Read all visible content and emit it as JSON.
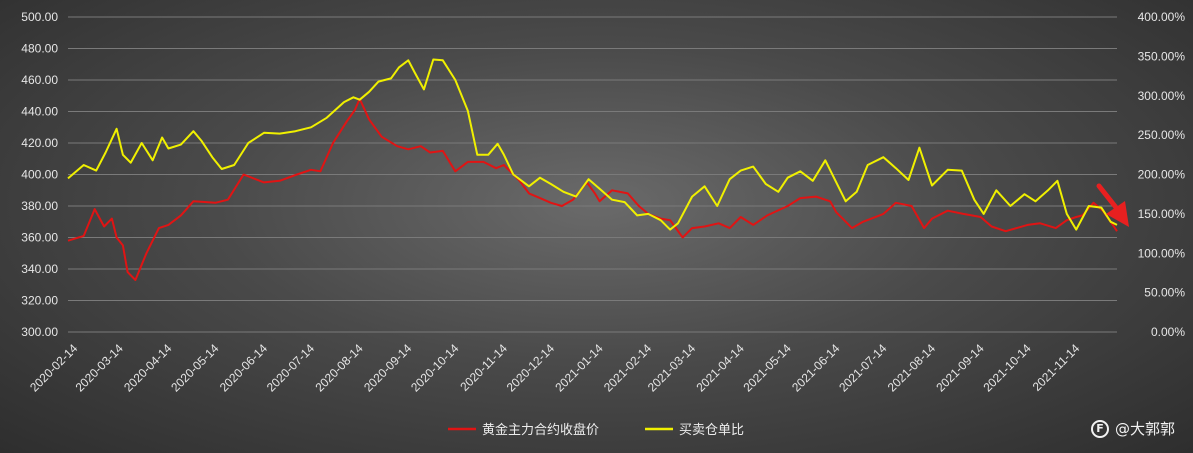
{
  "chart_data": {
    "type": "line",
    "title": "",
    "left_axis": {
      "ylim": [
        300,
        500
      ],
      "ticks": [
        "300.00",
        "320.00",
        "340.00",
        "360.00",
        "380.00",
        "400.00",
        "420.00",
        "440.00",
        "460.00",
        "480.00",
        "500.00"
      ]
    },
    "right_axis": {
      "ylim": [
        0,
        400
      ],
      "ticks": [
        "0.00%",
        "50.00%",
        "100.00%",
        "150.00%",
        "200.00%",
        "250.00%",
        "300.00%",
        "350.00%",
        "400.00%"
      ]
    },
    "x_ticks": [
      "2020-02-14",
      "2020-03-14",
      "2020-04-14",
      "2020-05-14",
      "2020-06-14",
      "2020-07-14",
      "2020-08-14",
      "2020-09-14",
      "2020-10-14",
      "2020-11-14",
      "2020-12-14",
      "2021-01-14",
      "2021-02-14",
      "2021-03-14",
      "2021-04-14",
      "2021-05-14",
      "2021-06-14",
      "2021-07-14",
      "2021-08-14",
      "2021-09-14",
      "2021-10-14",
      "2021-11-14"
    ],
    "x_range": [
      "2020-02-10",
      "2021-12-10"
    ],
    "grid": true,
    "legend_position": "bottom",
    "series": [
      {
        "name": "黄金主力合约收盘价",
        "axis": "left",
        "color": "#e01414",
        "x": [
          "2020-02-10",
          "2020-02-20",
          "2020-02-27",
          "2020-03-04",
          "2020-03-09",
          "2020-03-12",
          "2020-03-16",
          "2020-03-19",
          "2020-03-24",
          "2020-03-31",
          "2020-04-08",
          "2020-04-14",
          "2020-04-22",
          "2020-04-30",
          "2020-05-14",
          "2020-05-22",
          "2020-06-01",
          "2020-06-14",
          "2020-06-24",
          "2020-07-05",
          "2020-07-14",
          "2020-07-20",
          "2020-07-28",
          "2020-08-06",
          "2020-08-11",
          "2020-08-14",
          "2020-08-20",
          "2020-08-28",
          "2020-09-07",
          "2020-09-14",
          "2020-09-22",
          "2020-09-28",
          "2020-10-06",
          "2020-10-14",
          "2020-10-22",
          "2020-11-01",
          "2020-11-09",
          "2020-11-14",
          "2020-11-18",
          "2020-11-24",
          "2020-11-30",
          "2020-12-07",
          "2020-12-14",
          "2020-12-21",
          "2020-12-28",
          "2021-01-06",
          "2021-01-11",
          "2021-01-14",
          "2021-01-22",
          "2021-02-01",
          "2021-02-08",
          "2021-02-14",
          "2021-02-22",
          "2021-02-28",
          "2021-03-08",
          "2021-03-14",
          "2021-03-22",
          "2021-03-31",
          "2021-04-07",
          "2021-04-14",
          "2021-04-22",
          "2021-05-01",
          "2021-05-14",
          "2021-05-22",
          "2021-06-01",
          "2021-06-10",
          "2021-06-14",
          "2021-06-18",
          "2021-06-24",
          "2021-07-01",
          "2021-07-14",
          "2021-07-22",
          "2021-08-01",
          "2021-08-09",
          "2021-08-14",
          "2021-08-24",
          "2021-09-03",
          "2021-09-14",
          "2021-09-21",
          "2021-09-30",
          "2021-10-14",
          "2021-10-22",
          "2021-11-01",
          "2021-11-08",
          "2021-11-14",
          "2021-11-18",
          "2021-11-25",
          "2021-12-01",
          "2021-12-08",
          "2021-12-10"
        ],
        "values": [
          358,
          361,
          378,
          367,
          372,
          360,
          355,
          338,
          333,
          350,
          366,
          368,
          374,
          383,
          382,
          384,
          400,
          395,
          396,
          400,
          403,
          402,
          420,
          434,
          441,
          448,
          435,
          424,
          418,
          416,
          418,
          414,
          415,
          402,
          408,
          408,
          404,
          406,
          402,
          396,
          388,
          385,
          382,
          380,
          384,
          395,
          388,
          383,
          390,
          388,
          380,
          375,
          372,
          371,
          360,
          366,
          367,
          369,
          366,
          373,
          368,
          374,
          380,
          385,
          386,
          383,
          376,
          372,
          366,
          370,
          375,
          382,
          380,
          366,
          372,
          377,
          375,
          373,
          367,
          364,
          368,
          369,
          366,
          371,
          373,
          374,
          382,
          377,
          367,
          364
        ]
      },
      {
        "name": "买卖仓单比",
        "axis": "right",
        "color": "#f0f000",
        "x": [
          "2020-02-10",
          "2020-02-20",
          "2020-02-28",
          "2020-03-05",
          "2020-03-12",
          "2020-03-16",
          "2020-03-21",
          "2020-03-28",
          "2020-04-04",
          "2020-04-10",
          "2020-04-14",
          "2020-04-22",
          "2020-04-30",
          "2020-05-05",
          "2020-05-12",
          "2020-05-18",
          "2020-05-26",
          "2020-06-04",
          "2020-06-14",
          "2020-06-24",
          "2020-07-04",
          "2020-07-14",
          "2020-07-24",
          "2020-08-04",
          "2020-08-10",
          "2020-08-14",
          "2020-08-20",
          "2020-08-26",
          "2020-09-03",
          "2020-09-08",
          "2020-09-14",
          "2020-09-18",
          "2020-09-24",
          "2020-09-30",
          "2020-10-06",
          "2020-10-14",
          "2020-10-22",
          "2020-10-28",
          "2020-11-04",
          "2020-11-10",
          "2020-11-14",
          "2020-11-20",
          "2020-11-30",
          "2020-12-07",
          "2020-12-14",
          "2020-12-22",
          "2020-12-30",
          "2021-01-07",
          "2021-01-14",
          "2021-01-22",
          "2021-01-30",
          "2021-02-07",
          "2021-02-14",
          "2021-02-22",
          "2021-02-28",
          "2021-03-05",
          "2021-03-14",
          "2021-03-22",
          "2021-03-30",
          "2021-04-07",
          "2021-04-14",
          "2021-04-22",
          "2021-04-30",
          "2021-05-08",
          "2021-05-14",
          "2021-05-22",
          "2021-05-30",
          "2021-06-07",
          "2021-06-14",
          "2021-06-20",
          "2021-06-27",
          "2021-07-04",
          "2021-07-14",
          "2021-07-22",
          "2021-07-30",
          "2021-08-06",
          "2021-08-14",
          "2021-08-24",
          "2021-09-02",
          "2021-09-10",
          "2021-09-16",
          "2021-09-24",
          "2021-10-03",
          "2021-10-12",
          "2021-10-19",
          "2021-10-27",
          "2021-11-02",
          "2021-11-08",
          "2021-11-14",
          "2021-11-22",
          "2021-11-30",
          "2021-12-06",
          "2021-12-10"
        ],
        "values": [
          195,
          212,
          205,
          228,
          258,
          225,
          215,
          240,
          218,
          247,
          233,
          238,
          255,
          243,
          222,
          207,
          212,
          240,
          253,
          252,
          255,
          260,
          272,
          292,
          298,
          295,
          305,
          318,
          322,
          336,
          345,
          330,
          308,
          346,
          345,
          320,
          281,
          225,
          225,
          239,
          225,
          200,
          185,
          196,
          188,
          178,
          172,
          194,
          182,
          168,
          165,
          148,
          150,
          142,
          130,
          138,
          172,
          185,
          160,
          194,
          205,
          210,
          188,
          178,
          196,
          204,
          192,
          218,
          190,
          166,
          178,
          212,
          222,
          208,
          193,
          234,
          186,
          206,
          205,
          168,
          150,
          180,
          160,
          175,
          166,
          180,
          192,
          150,
          130,
          160,
          158,
          140,
          136
        ]
      }
    ]
  },
  "legend": {
    "series_1_label": "黄金主力合约收盘价",
    "series_2_label": "买卖仓单比"
  },
  "watermark": {
    "logo": "F",
    "text": "@大郭郭"
  },
  "annotation": {
    "arrow_color": "#e82020"
  }
}
